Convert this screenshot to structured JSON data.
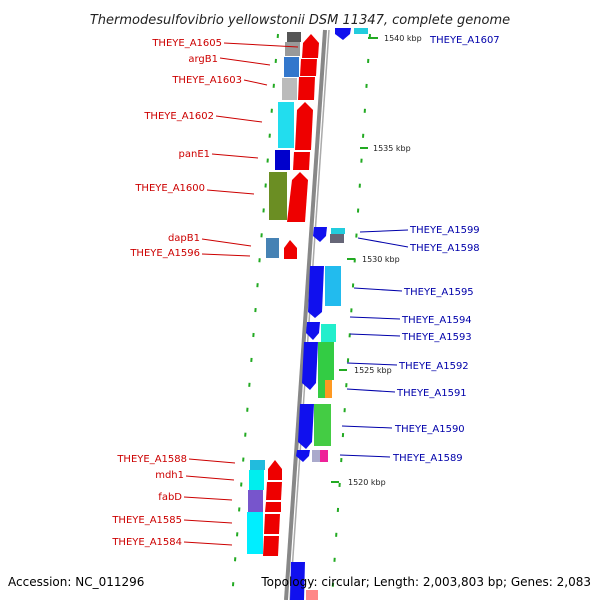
{
  "title": "Thermodesulfovibrio yellowstonii DSM 11347, complete genome",
  "footer": {
    "accession": "Accession: NC_011296",
    "topology": "Topology: circular; Length: 2,003,803 bp; Genes: 2,083"
  },
  "scale": {
    "ticks": [
      {
        "label": "1540 kbp"
      },
      {
        "label": "1535 kbp"
      },
      {
        "label": "1530 kbp"
      },
      {
        "label": "1525 kbp"
      },
      {
        "label": "1520 kbp"
      }
    ]
  },
  "genes_left": [
    {
      "label": "THEYE_A1605"
    },
    {
      "label": "argB1"
    },
    {
      "label": "THEYE_A1603"
    },
    {
      "label": "THEYE_A1602"
    },
    {
      "label": "panE1"
    },
    {
      "label": "THEYE_A1600"
    },
    {
      "label": "dapB1"
    },
    {
      "label": "THEYE_A1596"
    },
    {
      "label": "THEYE_A1588"
    },
    {
      "label": "mdh1"
    },
    {
      "label": "fabD"
    },
    {
      "label": "THEYE_A1585"
    },
    {
      "label": "THEYE_A1584"
    }
  ],
  "genes_right": [
    {
      "label": "THEYE_A1607"
    },
    {
      "label": "THEYE_A1599"
    },
    {
      "label": "THEYE_A1598"
    },
    {
      "label": "THEYE_A1595"
    },
    {
      "label": "THEYE_A1594"
    },
    {
      "label": "THEYE_A1593"
    },
    {
      "label": "THEYE_A1592"
    },
    {
      "label": "THEYE_A1591"
    },
    {
      "label": "THEYE_A1590"
    },
    {
      "label": "THEYE_A1589"
    }
  ],
  "colors": {
    "forward_strand": "#ee0000",
    "reverse_strand": "#1010ee",
    "backbone": "#888888",
    "tick_dots": "#22aa22",
    "label_left": "#cc0000",
    "label_right": "#0000aa"
  }
}
